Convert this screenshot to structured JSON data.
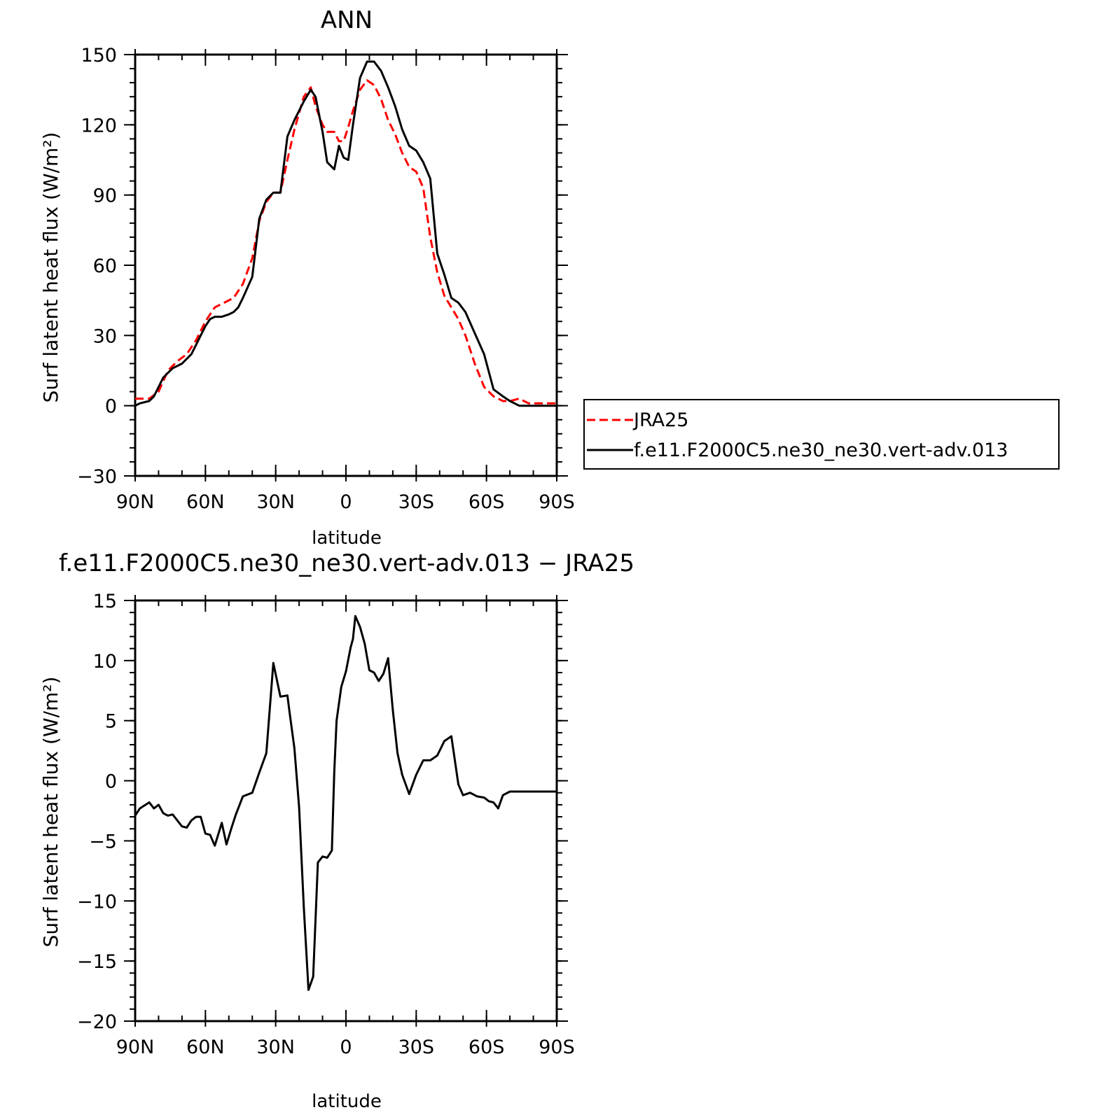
{
  "chart_data": [
    {
      "type": "line",
      "title": "ANN",
      "xlabel": "latitude",
      "ylabel": "Surf latent heat flux (W/m²)",
      "xlim": [
        90,
        -90
      ],
      "ylim": [
        -30,
        150
      ],
      "yticks": [
        -30,
        0,
        30,
        60,
        90,
        120,
        150
      ],
      "xticks": [
        90,
        60,
        30,
        0,
        -30,
        -60,
        -90
      ],
      "xtick_labels": [
        "90N",
        "60N",
        "30N",
        "0",
        "30S",
        "60S",
        "90S"
      ],
      "legend_position": "right",
      "series": [
        {
          "name": "JRA25",
          "color": "#ff0000",
          "style": "dashed",
          "x": [
            90,
            84,
            80,
            76,
            72,
            68,
            64,
            60,
            56,
            52,
            48,
            44,
            40,
            37,
            34,
            31,
            28,
            25,
            22,
            18,
            15,
            13,
            10,
            8,
            5,
            3,
            1,
            -1,
            -3,
            -6,
            -9,
            -12,
            -15,
            -18,
            -21,
            -24,
            -27,
            -30,
            -33,
            -36,
            -39,
            -42,
            -45,
            -48,
            -51,
            -55,
            -59,
            -63,
            -67,
            -70,
            -74,
            -78,
            -82,
            -86,
            -90
          ],
          "y": [
            3,
            3,
            6,
            15,
            19,
            22,
            28,
            36,
            42,
            44,
            46,
            52,
            63,
            79,
            87,
            91,
            91,
            105,
            118,
            132,
            136,
            128,
            120,
            117,
            117,
            113,
            113,
            119,
            126,
            135,
            139,
            137,
            131,
            122,
            116,
            108,
            102,
            100,
            93,
            72,
            57,
            47,
            42,
            37,
            30,
            18,
            8,
            4,
            2,
            2,
            3,
            1,
            1,
            1,
            1
          ]
        },
        {
          "name": "f.e11.F2000C5.ne30_ne30.vert-adv.013",
          "color": "#000000",
          "style": "solid",
          "x": [
            90,
            88,
            84,
            82,
            78,
            76,
            74,
            70,
            66,
            64,
            62,
            60,
            58,
            56,
            53,
            50,
            48,
            46,
            44,
            40,
            37,
            34,
            31,
            28,
            25,
            22,
            18,
            15,
            13,
            10,
            8,
            5,
            3,
            1,
            -1,
            -3,
            -6,
            -9,
            -12,
            -15,
            -18,
            -21,
            -24,
            -27,
            -30,
            -33,
            -36,
            -39,
            -42,
            -45,
            -48,
            -51,
            -55,
            -59,
            -63,
            -67,
            -70,
            -74,
            -78,
            -82,
            -86,
            -90
          ],
          "y": [
            0,
            1,
            2,
            4,
            12,
            14,
            16,
            18,
            22,
            26,
            30,
            34,
            37,
            38,
            38,
            39,
            40,
            42,
            46,
            55,
            80,
            88,
            91,
            91,
            115,
            122,
            130,
            135,
            132,
            117,
            104,
            101,
            111,
            106,
            105,
            120,
            140,
            147,
            147,
            143,
            136,
            128,
            118,
            111,
            109,
            104,
            97,
            65,
            56,
            46,
            44,
            40,
            31,
            22,
            7,
            4,
            2,
            0,
            0,
            0,
            0,
            0
          ]
        }
      ]
    },
    {
      "type": "line",
      "title": "f.e11.F2000C5.ne30_ne30.vert-adv.013 − JRA25",
      "xlabel": "latitude",
      "ylabel": "Surf latent heat flux (W/m²)",
      "xlim": [
        90,
        -90
      ],
      "ylim": [
        -20,
        15
      ],
      "yticks": [
        -20,
        -15,
        -10,
        -5,
        0,
        5,
        10,
        15
      ],
      "xticks": [
        90,
        60,
        30,
        0,
        -30,
        -60,
        -90
      ],
      "xtick_labels": [
        "90N",
        "60N",
        "30N",
        "0",
        "30S",
        "60S",
        "90S"
      ],
      "series": [
        {
          "name": "",
          "color": "#000000",
          "style": "solid",
          "x": [
            90,
            88,
            84,
            82,
            80,
            78,
            76,
            74,
            70,
            68,
            66,
            64,
            62,
            60,
            58,
            56,
            53,
            51,
            49,
            47,
            44,
            40,
            37,
            34,
            31,
            28,
            25,
            24,
            22,
            20,
            18,
            16,
            14,
            12,
            10,
            8,
            6,
            5,
            4,
            2,
            0,
            -2,
            -3,
            -4,
            -6,
            -8,
            -10,
            -12,
            -14,
            -16,
            -18,
            -20,
            -22,
            -24,
            -27,
            -30,
            -33,
            -36,
            -39,
            -42,
            -45,
            -48,
            -50,
            -53,
            -56,
            -59,
            -61,
            -63,
            -65,
            -67,
            -70,
            -72,
            -74,
            -77,
            -80,
            -83,
            -85,
            -87,
            -89,
            -90
          ],
          "y": [
            -2.9,
            -2.3,
            -1.8,
            -2.3,
            -2.0,
            -2.7,
            -2.9,
            -2.8,
            -3.8,
            -3.9,
            -3.3,
            -3.0,
            -3.0,
            -4.4,
            -4.5,
            -5.4,
            -3.5,
            -5.3,
            -4.0,
            -2.8,
            -1.3,
            -1.0,
            0.7,
            2.3,
            9.8,
            7.0,
            7.1,
            5.6,
            2.7,
            -2.2,
            -10.5,
            -17.4,
            -16.3,
            -6.8,
            -6.3,
            -6.4,
            -5.8,
            0.7,
            5.0,
            7.8,
            9.1,
            11.1,
            11.8,
            13.7,
            12.8,
            11.4,
            9.2,
            9.0,
            8.3,
            8.9,
            10.2,
            5.9,
            2.3,
            0.5,
            -1.1,
            0.5,
            1.7,
            1.7,
            2.1,
            3.3,
            3.7,
            -0.3,
            -1.2,
            -1.0,
            -1.3,
            -1.4,
            -1.7,
            -1.8,
            -2.3,
            -1.2,
            -0.9,
            -0.9,
            -0.9,
            -0.9,
            -0.9,
            -0.9,
            -0.9,
            -0.9,
            -0.9,
            -0.9
          ]
        }
      ]
    }
  ]
}
